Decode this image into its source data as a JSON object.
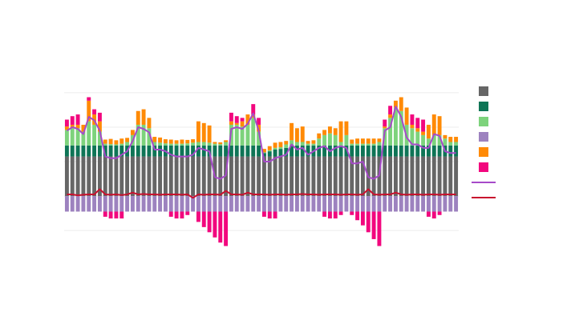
{
  "chart_data": {
    "type": "bar",
    "stacked": true,
    "legend": "right",
    "grid": true,
    "ylim": [
      -1.6,
      3.3
    ],
    "yticks": [
      -1,
      0,
      1,
      2,
      3
    ],
    "series": [
      {
        "color": "#666666",
        "type": "bar",
        "values": [
          1.15,
          1.15,
          1.15,
          1.15,
          1.15,
          1.15,
          1.15,
          1.15,
          1.15,
          1.15,
          1.15,
          1.15,
          1.15,
          1.15,
          1.15,
          1.15,
          1.15,
          1.15,
          1.15,
          1.15,
          1.15,
          1.15,
          1.15,
          1.15,
          1.15,
          1.15,
          1.15,
          1.15,
          1.15,
          1.15,
          1.15,
          1.15,
          1.15,
          1.15,
          1.15,
          1.15,
          1.15,
          1.15,
          1.15,
          1.15,
          1.15,
          1.15,
          1.15,
          1.15,
          1.15,
          1.15,
          1.15,
          1.15,
          1.15,
          1.15,
          1.15,
          1.15,
          1.15,
          1.15,
          1.15,
          1.15,
          1.15,
          1.15,
          1.15,
          1.15,
          1.15,
          1.15,
          1.15,
          1.15,
          1.15,
          1.15,
          1.15,
          1.15,
          1.15,
          1.15,
          1.15,
          1.15
        ]
      },
      {
        "color": "#0e7556",
        "type": "bar",
        "values": [
          0.32,
          0.32,
          0.32,
          0.32,
          0.32,
          0.32,
          0.32,
          0.32,
          0.32,
          0.32,
          0.32,
          0.32,
          0.32,
          0.32,
          0.32,
          0.32,
          0.32,
          0.32,
          0.32,
          0.32,
          0.32,
          0.32,
          0.32,
          0.32,
          0.32,
          0.32,
          0.32,
          0.32,
          0.32,
          0.32,
          0.32,
          0.32,
          0.32,
          0.32,
          0.32,
          0.32,
          0.1,
          0.15,
          0.2,
          0.22,
          0.25,
          0.32,
          0.32,
          0.32,
          0.32,
          0.32,
          0.32,
          0.32,
          0.32,
          0.32,
          0.32,
          0.32,
          0.32,
          0.32,
          0.32,
          0.32,
          0.32,
          0.32,
          0.32,
          0.32,
          0.32,
          0.32,
          0.32,
          0.32,
          0.32,
          0.32,
          0.32,
          0.32,
          0.32,
          0.32,
          0.32,
          0.32
        ]
      },
      {
        "color": "#7dd37c",
        "type": "bar",
        "values": [
          0.45,
          0.5,
          0.5,
          0.4,
          0.7,
          0.6,
          0.4,
          0.05,
          0.04,
          0.03,
          0.05,
          0.1,
          0.3,
          0.6,
          0.6,
          0.5,
          0.1,
          0.08,
          0.06,
          0.05,
          0.05,
          0.05,
          0.06,
          0.08,
          0.1,
          0.1,
          0.08,
          0.05,
          0.04,
          0.1,
          0.6,
          0.6,
          0.55,
          0.6,
          0.8,
          0.4,
          0.02,
          0.03,
          0.05,
          0.05,
          0.1,
          0.15,
          0.1,
          0.1,
          0.05,
          0.05,
          0.2,
          0.3,
          0.35,
          0.3,
          0.1,
          0.3,
          0.05,
          0.05,
          0.05,
          0.05,
          0.05,
          0.1,
          0.5,
          0.8,
          1.1,
          1.0,
          0.6,
          0.5,
          0.4,
          0.3,
          0.2,
          0.3,
          0.3,
          0.2,
          0.1,
          0.1
        ]
      },
      {
        "color": "#9d82bf",
        "type": "bar",
        "values": [
          -0.45,
          -0.45,
          -0.45,
          -0.45,
          -0.45,
          -0.45,
          -0.45,
          -0.45,
          -0.45,
          -0.45,
          -0.45,
          -0.45,
          -0.45,
          -0.45,
          -0.45,
          -0.45,
          -0.45,
          -0.45,
          -0.45,
          -0.45,
          -0.45,
          -0.45,
          -0.45,
          -0.45,
          -0.45,
          -0.45,
          -0.45,
          -0.45,
          -0.45,
          -0.45,
          -0.45,
          -0.45,
          -0.45,
          -0.45,
          -0.45,
          -0.45,
          -0.45,
          -0.45,
          -0.45,
          -0.45,
          -0.45,
          -0.45,
          -0.45,
          -0.45,
          -0.45,
          -0.45,
          -0.45,
          -0.45,
          -0.45,
          -0.45,
          -0.45,
          -0.45,
          -0.45,
          -0.45,
          -0.45,
          -0.45,
          -0.45,
          -0.45,
          -0.45,
          -0.45,
          -0.45,
          -0.45,
          -0.45,
          -0.45,
          -0.45,
          -0.45,
          -0.45,
          -0.45,
          -0.45,
          -0.45,
          -0.45,
          -0.45
        ]
      },
      {
        "color": "#ff8a05",
        "type": "bar",
        "values": [
          0.1,
          0.1,
          0.1,
          0.2,
          0.6,
          0.3,
          0.3,
          0.12,
          0.15,
          0.12,
          0.15,
          0.12,
          0.15,
          0.4,
          0.45,
          0.3,
          0.15,
          0.15,
          0.12,
          0.12,
          0.1,
          0.12,
          0.1,
          0.1,
          0.6,
          0.55,
          0.5,
          0.05,
          0.05,
          0.05,
          0.1,
          0.05,
          0.15,
          0.3,
          0.1,
          0.2,
          0.1,
          0.12,
          0.15,
          0.15,
          0.1,
          0.5,
          0.4,
          0.45,
          0.08,
          0.1,
          0.15,
          0.15,
          0.2,
          0.2,
          0.6,
          0.4,
          0.12,
          0.15,
          0.15,
          0.15,
          0.15,
          0.1,
          0.05,
          0.1,
          0.2,
          0.4,
          0.5,
          0.1,
          0.1,
          0.1,
          0.4,
          0.6,
          0.55,
          0.1,
          0.15,
          0.15
        ]
      },
      {
        "color": "#f2077e",
        "type": "bar",
        "values": [
          0.2,
          0.25,
          0.3,
          0,
          0.1,
          0.15,
          0.25,
          -0.15,
          -0.2,
          -0.2,
          -0.2,
          0,
          0,
          0,
          0,
          0,
          0,
          0,
          0,
          -0.15,
          -0.2,
          -0.2,
          -0.1,
          0,
          -0.3,
          -0.45,
          -0.6,
          -0.75,
          -0.9,
          -1.0,
          0.25,
          0.2,
          0.1,
          0,
          0.3,
          0.2,
          -0.15,
          -0.2,
          -0.2,
          0,
          0,
          0,
          0,
          0,
          0,
          0,
          0,
          -0.15,
          -0.2,
          -0.2,
          -0.1,
          0,
          -0.1,
          -0.25,
          -0.4,
          -0.6,
          -0.8,
          -1.0,
          0.2,
          0.25,
          0,
          0,
          0,
          0.3,
          0.3,
          0.35,
          -0.15,
          -0.2,
          -0.1,
          0,
          0,
          0
        ]
      },
      {
        "color": "#a64ac9",
        "type": "line",
        "values": [
          1.9,
          2.0,
          1.95,
          1.8,
          2.3,
          2.2,
          1.9,
          1.15,
          1.1,
          1.1,
          1.2,
          1.3,
          1.6,
          2.0,
          1.95,
          1.85,
          1.35,
          1.35,
          1.3,
          1.2,
          1.15,
          1.15,
          1.15,
          1.2,
          1.4,
          1.35,
          1.3,
          0.55,
          0.5,
          0.6,
          1.95,
          2.0,
          1.95,
          2.1,
          2.4,
          1.9,
          1.0,
          1.0,
          1.1,
          1.15,
          1.2,
          1.5,
          1.35,
          1.4,
          1.2,
          1.3,
          1.4,
          1.45,
          1.3,
          1.4,
          1.45,
          1.4,
          0.95,
          0.95,
          1.0,
          0.55,
          0.5,
          0.6,
          1.9,
          2.0,
          2.6,
          2.3,
          1.7,
          1.5,
          1.5,
          1.4,
          1.4,
          1.8,
          1.75,
          1.3,
          1.25,
          1.25
        ]
      },
      {
        "color": "#c8102e",
        "type": "line",
        "values": [
          0.05,
          0.05,
          0.02,
          0.04,
          0.05,
          0.05,
          0.2,
          0.05,
          0.04,
          0.05,
          0.03,
          0.05,
          0.1,
          0.05,
          0.06,
          0.05,
          0.05,
          0.04,
          0.05,
          0.05,
          0.05,
          0.04,
          0.05,
          -0.05,
          0.05,
          0.04,
          0.05,
          0.05,
          0.04,
          0.15,
          0.05,
          0.05,
          0.04,
          0.1,
          0.05,
          0.05,
          0.05,
          0.04,
          0.05,
          0.05,
          0.04,
          0.05,
          0.05,
          0.06,
          0.05,
          0.05,
          0.04,
          0.05,
          0.05,
          0.05,
          0.04,
          0.05,
          0.05,
          0.04,
          0.05,
          0.2,
          0.05,
          0.04,
          0.05,
          0.05,
          0.1,
          0.05,
          0.04,
          0.05,
          0.05,
          0.04,
          0.05,
          0.05,
          0.04,
          0.05,
          0.05,
          0.05
        ]
      }
    ]
  }
}
